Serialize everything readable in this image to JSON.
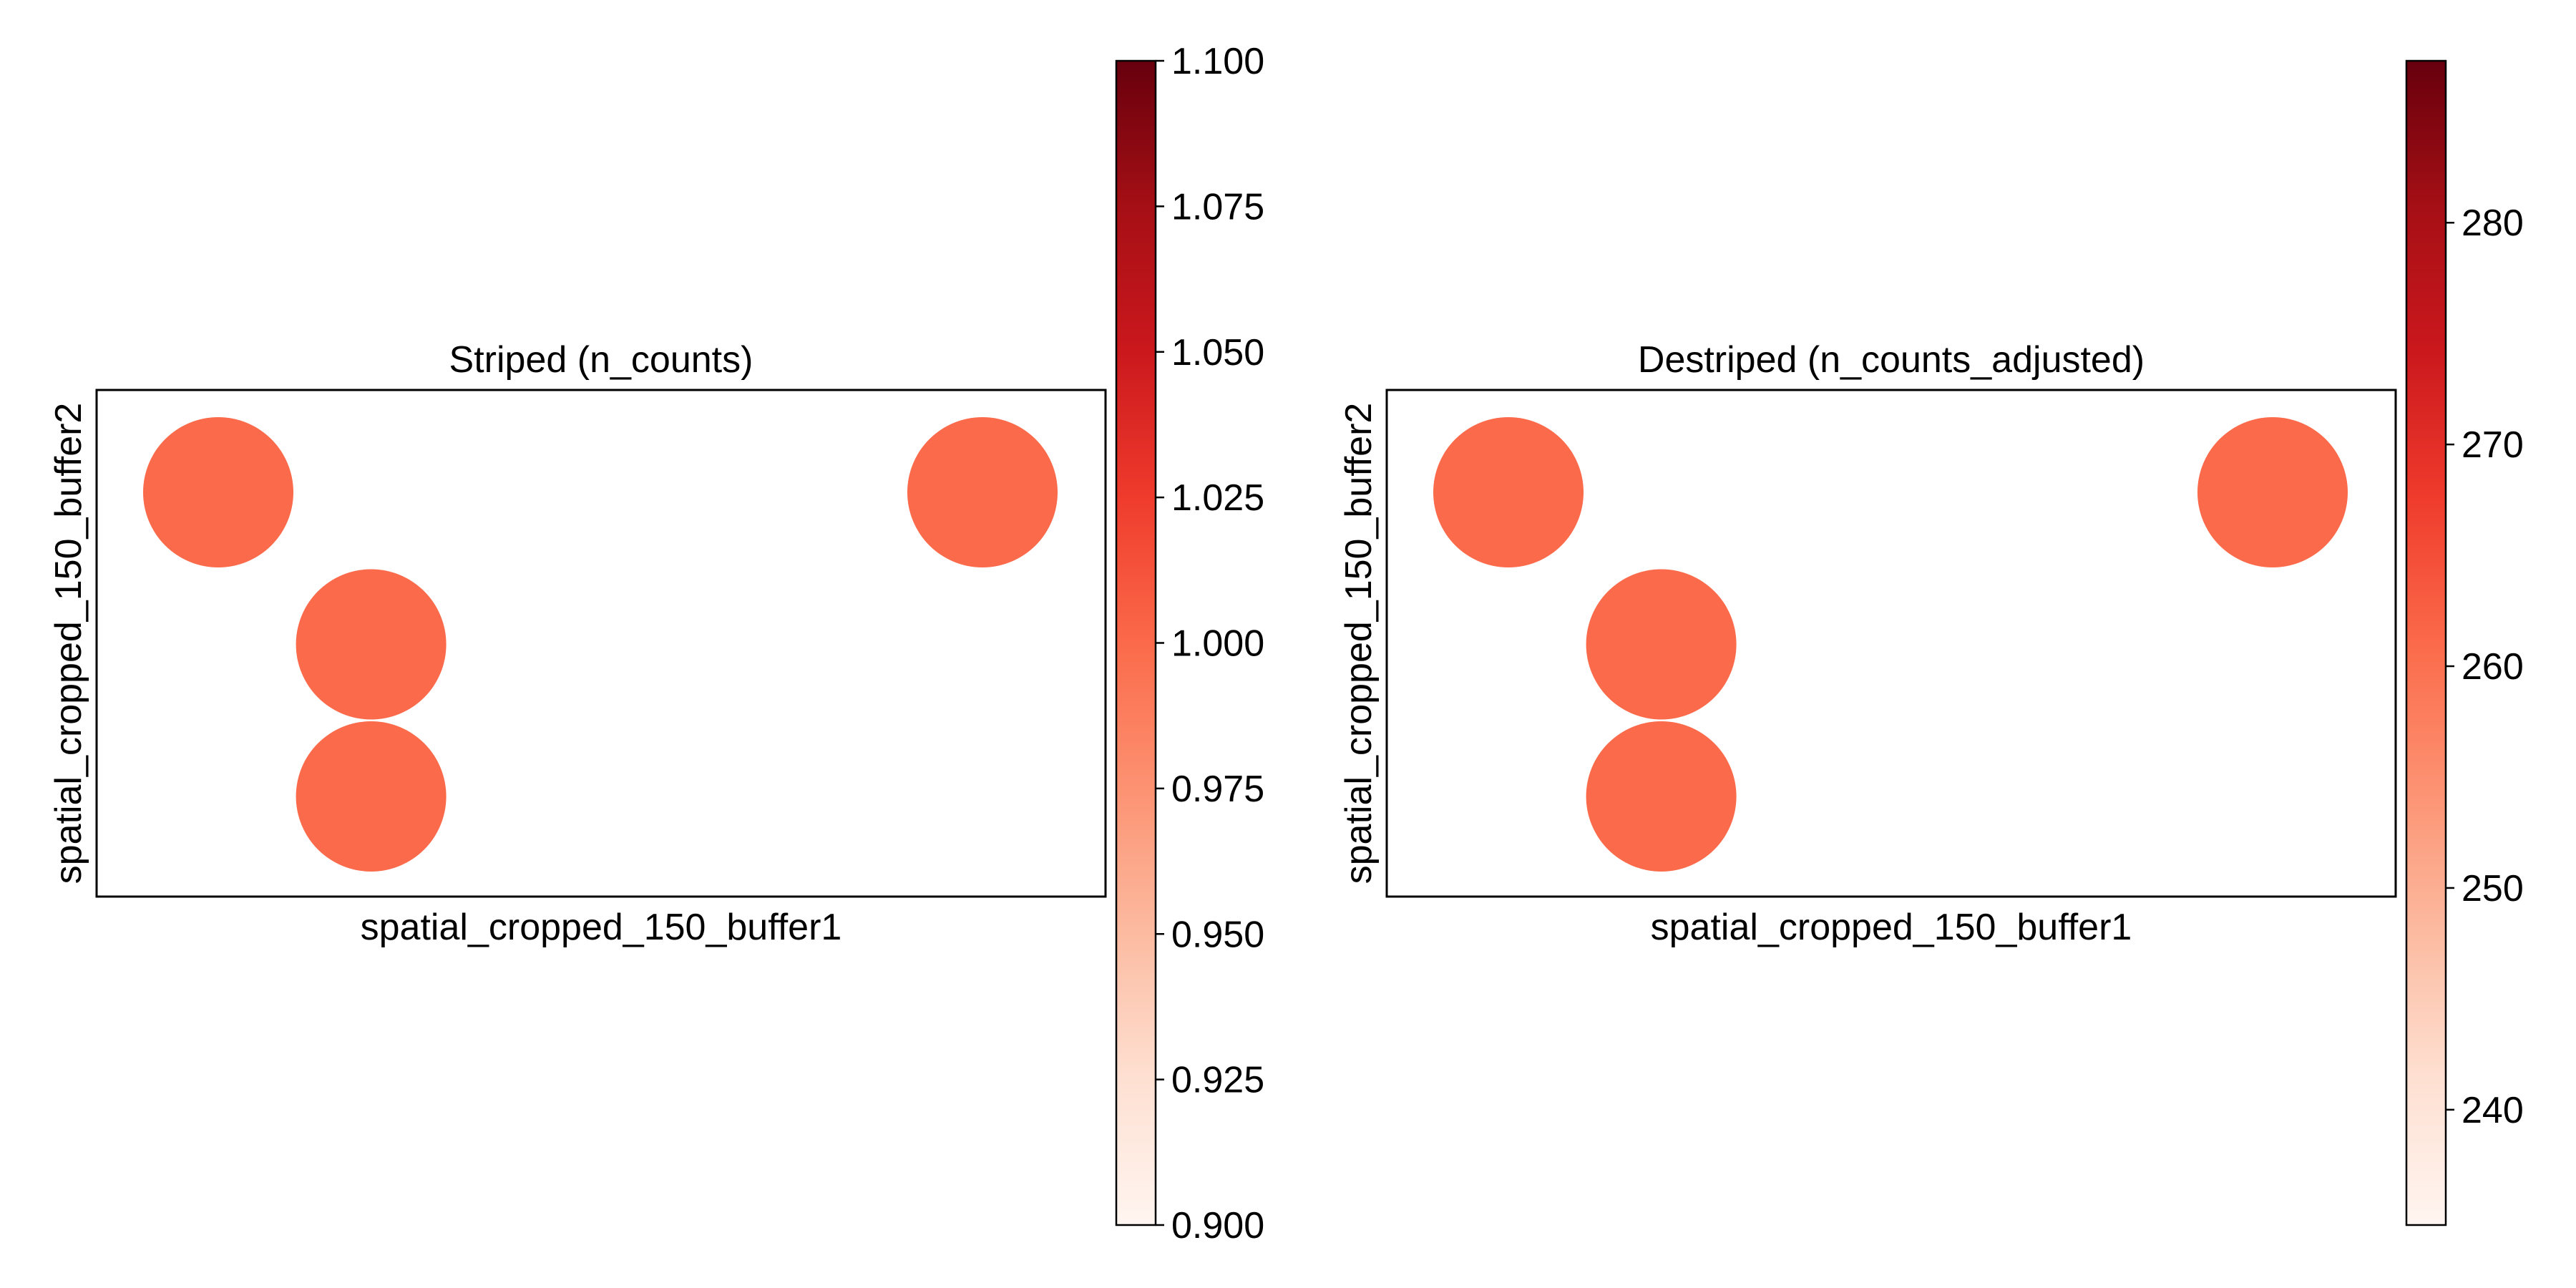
{
  "chart_data": [
    {
      "type": "scatter",
      "title": "Striped (n_counts)",
      "xlabel": "spatial_cropped_150_buffer1",
      "ylabel": "spatial_cropped_150_buffer2",
      "grid": false,
      "points": [
        {
          "x": 0,
          "y": 0,
          "value": 1.0
        },
        {
          "x": 1,
          "y": 1,
          "value": 1.0
        },
        {
          "x": 1,
          "y": 2,
          "value": 1.0
        },
        {
          "x": 5,
          "y": 0,
          "value": 1.0
        }
      ],
      "colorbar": {
        "cmap": "Reds",
        "range": [
          0.9,
          1.1
        ],
        "ticks": [
          0.9,
          0.925,
          0.95,
          0.975,
          1.0,
          1.025,
          1.05,
          1.075,
          1.1
        ],
        "tick_labels": [
          "0.900",
          "0.925",
          "0.950",
          "0.975",
          "1.000",
          "1.025",
          "1.050",
          "1.075",
          "1.100"
        ]
      }
    },
    {
      "type": "scatter",
      "title": "Destriped (n_counts_adjusted)",
      "xlabel": "spatial_cropped_150_buffer1",
      "ylabel": "spatial_cropped_150_buffer2",
      "grid": false,
      "points": [
        {
          "x": 0,
          "y": 0,
          "value": 260
        },
        {
          "x": 1,
          "y": 1,
          "value": 260
        },
        {
          "x": 1,
          "y": 2,
          "value": 260
        },
        {
          "x": 5,
          "y": 0,
          "value": 260
        }
      ],
      "colorbar": {
        "cmap": "Reds",
        "range": [
          234.8,
          287.3
        ],
        "ticks": [
          240,
          250,
          260,
          270,
          280
        ],
        "tick_labels": [
          "240",
          "250",
          "260",
          "270",
          "280"
        ]
      }
    }
  ],
  "colors": {
    "point_fill": "#fb6a4a",
    "axis": "#000000",
    "cmap_stops": [
      "#fff5f0",
      "#fee0d2",
      "#fcbba1",
      "#fc9272",
      "#fb6a4a",
      "#ef3b2c",
      "#cb181d",
      "#a50f15",
      "#67000d"
    ]
  }
}
